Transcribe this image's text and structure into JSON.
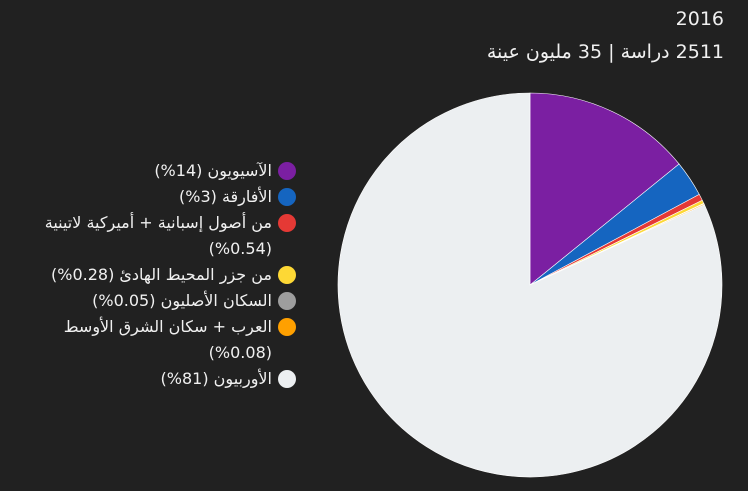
{
  "chart_data": {
    "type": "pie",
    "title": "2016",
    "subtitle": "2511 دراسة | 35 مليون عينة",
    "categories": [
      "الآسيويون (14%)",
      "الأفارقة (3%)",
      "من أصول إسبانية + أميركية لاتينية (0.54%)",
      "من جزر المحيط الهادئ (0.28%)",
      "السكان الأصليون (0.05%)",
      "العرب + سكان الشرق الأوسط (0.08%)",
      "الأوربيون (81%)"
    ],
    "values": [
      14,
      3,
      0.54,
      0.28,
      0.05,
      0.08,
      81
    ],
    "colors": [
      "#7b1fa2",
      "#1565c0",
      "#e53935",
      "#fdd835",
      "#9e9e9e",
      "#ffa000",
      "#eceff1"
    ]
  }
}
